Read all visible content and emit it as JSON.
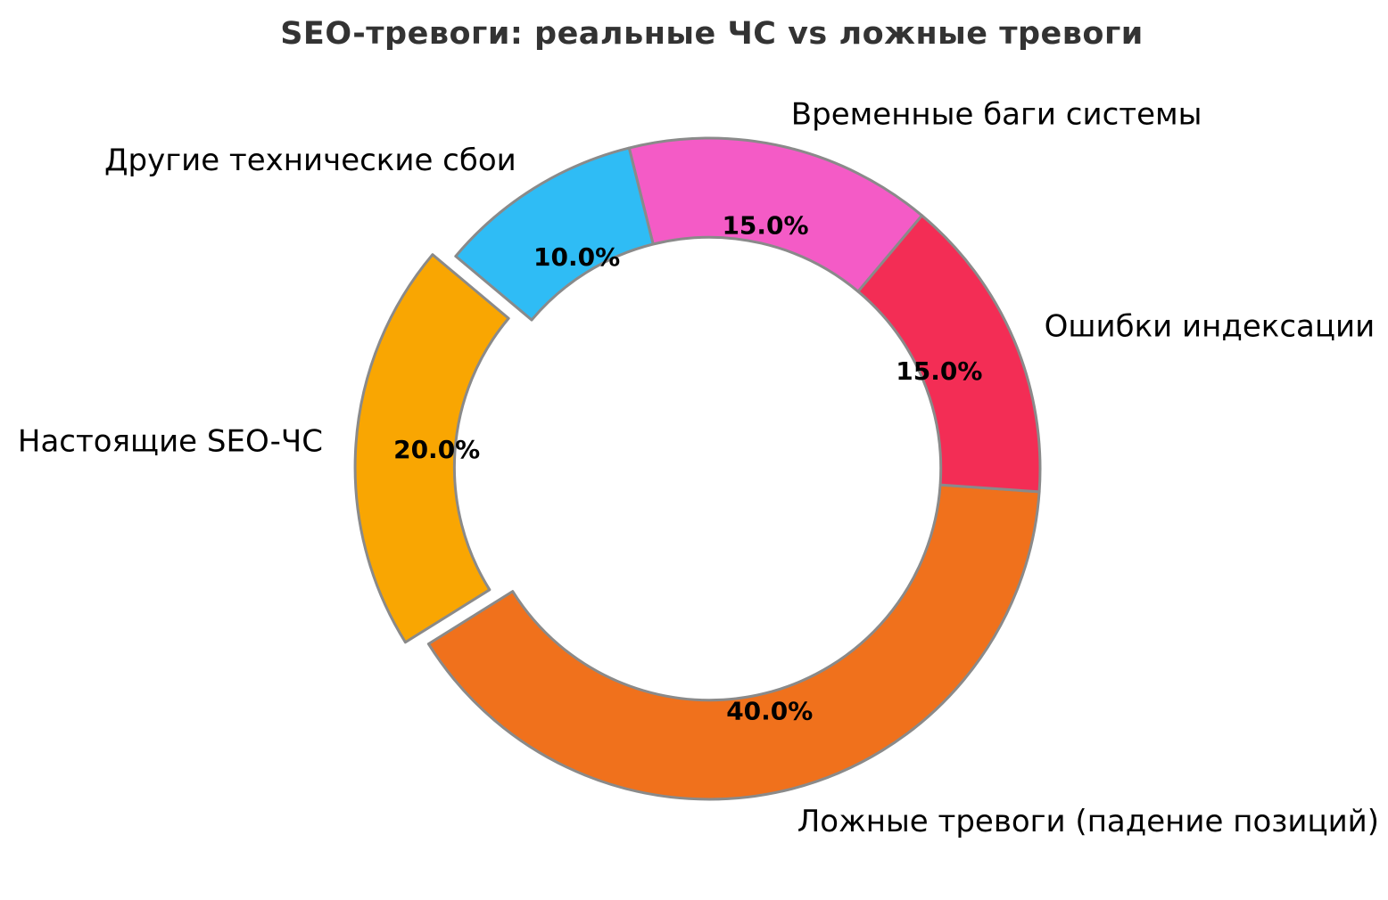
{
  "chart_data": {
    "type": "pie",
    "subtype": "donut",
    "title": "SEO-тревоги: реальные ЧС vs ложные тревоги",
    "labels": [
      "Настоящие SEO-ЧС",
      "Ложные тревоги (падение позиций)",
      "Ошибки индексации",
      "Временные баги системы",
      "Другие технические сбои"
    ],
    "values": [
      20,
      40,
      15,
      15,
      10
    ],
    "total": 100,
    "autopct_labels": [
      "20.0%",
      "40.0%",
      "15.0%",
      "15.0%",
      "10.0%"
    ],
    "colors": [
      "#F9A602",
      "#F0711C",
      "#F32D55",
      "#F45BC6",
      "#2FBCF5"
    ],
    "explode": [
      0.07,
      0,
      0,
      0,
      0
    ],
    "startangle": 140,
    "counterclock": true,
    "donut_width_fraction": 0.3,
    "pct_distance": 0.755,
    "label_distance": 1.1,
    "edge_color": "#8A8A8A",
    "edge_width": 3,
    "title_color": "#333333",
    "text_color": "#000000",
    "background": "#FFFFFF",
    "legend_position": "none",
    "grid": false
  }
}
